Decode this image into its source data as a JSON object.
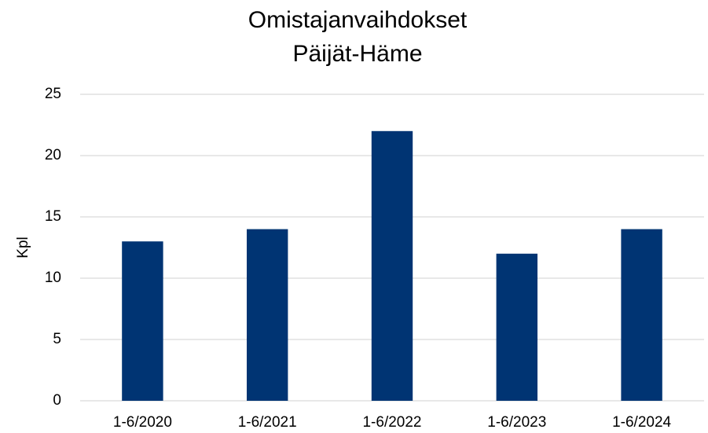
{
  "chart_data": {
    "type": "bar",
    "title": "Omistajanvaihdokset",
    "subtitle": "Päijät-Häme",
    "y_label": "Kpl",
    "categories": [
      "1-6/2020",
      "1-6/2021",
      "1-6/2022",
      "1-6/2023",
      "1-6/2024"
    ],
    "values": [
      13,
      14,
      22,
      12,
      14
    ],
    "color": "#003473",
    "ylim": [
      0,
      25
    ],
    "yticks": [
      0,
      5,
      10,
      15,
      20,
      25
    ],
    "grid": true
  }
}
